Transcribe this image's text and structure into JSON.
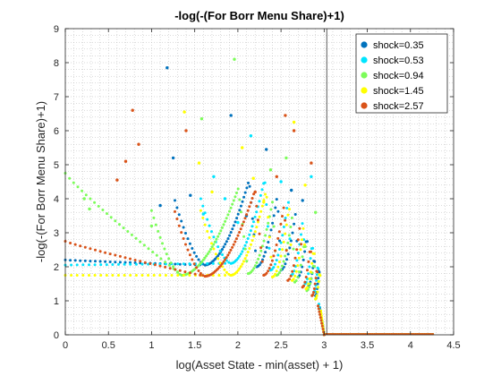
{
  "chart_data": {
    "type": "scatter",
    "title": "-log(-(For Borr Menu Share)+1)",
    "xlabel": "log(Asset State - min(asset) + 1)",
    "ylabel": "-log(-(For Borr Menu Share)+1)",
    "xlim": [
      0,
      4.5
    ],
    "ylim": [
      0,
      9
    ],
    "xticks": [
      "0",
      "0.5",
      "1",
      "1.5",
      "2",
      "2.5",
      "3",
      "3.5",
      "4",
      "4.5"
    ],
    "yticks": [
      "0",
      "1",
      "2",
      "3",
      "4",
      "5",
      "6",
      "7",
      "8",
      "9"
    ],
    "grid": "minor dotted",
    "legend_position": "top-right",
    "vertical_line_x": 3.03,
    "series": [
      {
        "name": "shock=0.35",
        "color": "#0072BD",
        "base": 2.2,
        "cusps": [
          {
            "x": 1.62,
            "y": 2.05
          },
          {
            "x": 2.22,
            "y": 2.0
          },
          {
            "x": 2.5,
            "y": 1.9
          },
          {
            "x": 2.7,
            "y": 1.7
          },
          {
            "x": 2.82,
            "y": 1.45
          },
          {
            "x": 2.9,
            "y": 1.15
          },
          {
            "x": 2.95,
            "y": 0.8
          }
        ],
        "outliers": [
          [
            1.18,
            7.85
          ],
          [
            1.92,
            6.45
          ],
          [
            1.25,
            5.2
          ],
          [
            2.33,
            5.45
          ],
          [
            2.62,
            4.25
          ],
          [
            2.75,
            3.95
          ],
          [
            1.45,
            4.1
          ],
          [
            1.1,
            3.8
          ],
          [
            2.1,
            3.5
          ]
        ]
      },
      {
        "name": "shock=0.53",
        "color": "#00E5FF",
        "base": 2.05,
        "cusps": [
          {
            "x": 1.92,
            "y": 2.1
          },
          {
            "x": 2.38,
            "y": 1.9
          },
          {
            "x": 2.62,
            "y": 1.75
          },
          {
            "x": 2.78,
            "y": 1.5
          },
          {
            "x": 2.88,
            "y": 1.25
          },
          {
            "x": 2.94,
            "y": 0.9
          }
        ],
        "outliers": [
          [
            1.72,
            4.65
          ],
          [
            2.15,
            5.85
          ],
          [
            2.85,
            4.65
          ],
          [
            1.85,
            4.0
          ],
          [
            2.5,
            4.5
          ],
          [
            1.6,
            3.55
          ],
          [
            2.0,
            3.3
          ]
        ]
      },
      {
        "name": "shock=0.94",
        "color": "#7CFC5A",
        "base": 4.75,
        "cusps": [
          {
            "x": 1.35,
            "y": 1.75
          },
          {
            "x": 2.12,
            "y": 1.8
          },
          {
            "x": 2.45,
            "y": 1.75
          },
          {
            "x": 2.66,
            "y": 1.55
          },
          {
            "x": 2.8,
            "y": 1.3
          },
          {
            "x": 2.9,
            "y": 1.05
          },
          {
            "x": 2.96,
            "y": 0.7
          }
        ],
        "outliers": [
          [
            1.96,
            8.1
          ],
          [
            1.58,
            6.35
          ],
          [
            2.56,
            5.2
          ],
          [
            2.38,
            4.85
          ],
          [
            0.22,
            4.0
          ],
          [
            0.28,
            3.7
          ],
          [
            2.9,
            3.6
          ],
          [
            1.0,
            3.2
          ]
        ]
      },
      {
        "name": "shock=1.45",
        "color": "#FFFF00",
        "base": 1.75,
        "cusps": [
          {
            "x": 1.92,
            "y": 1.75
          },
          {
            "x": 2.4,
            "y": 1.7
          },
          {
            "x": 2.63,
            "y": 1.6
          },
          {
            "x": 2.79,
            "y": 1.35
          },
          {
            "x": 2.9,
            "y": 1.05
          },
          {
            "x": 2.96,
            "y": 0.7
          }
        ],
        "outliers": [
          [
            1.38,
            6.55
          ],
          [
            2.05,
            5.5
          ],
          [
            1.55,
            5.05
          ],
          [
            2.65,
            6.25
          ],
          [
            2.18,
            4.6
          ],
          [
            2.78,
            4.4
          ],
          [
            1.7,
            4.2
          ],
          [
            2.3,
            3.9
          ]
        ]
      },
      {
        "name": "shock=2.57",
        "color": "#D95319",
        "base": 2.75,
        "cusps": [
          {
            "x": 1.62,
            "y": 1.72
          },
          {
            "x": 2.3,
            "y": 1.75
          },
          {
            "x": 2.58,
            "y": 1.6
          },
          {
            "x": 2.75,
            "y": 1.4
          },
          {
            "x": 2.86,
            "y": 1.15
          },
          {
            "x": 2.93,
            "y": 0.85
          }
        ],
        "outliers": [
          [
            0.78,
            6.6
          ],
          [
            2.55,
            6.45
          ],
          [
            2.65,
            6.0
          ],
          [
            0.85,
            5.6
          ],
          [
            0.7,
            5.1
          ],
          [
            1.4,
            6.0
          ],
          [
            2.85,
            5.05
          ],
          [
            2.45,
            4.65
          ],
          [
            2.2,
            4.2
          ],
          [
            0.6,
            4.55
          ]
        ]
      }
    ]
  }
}
